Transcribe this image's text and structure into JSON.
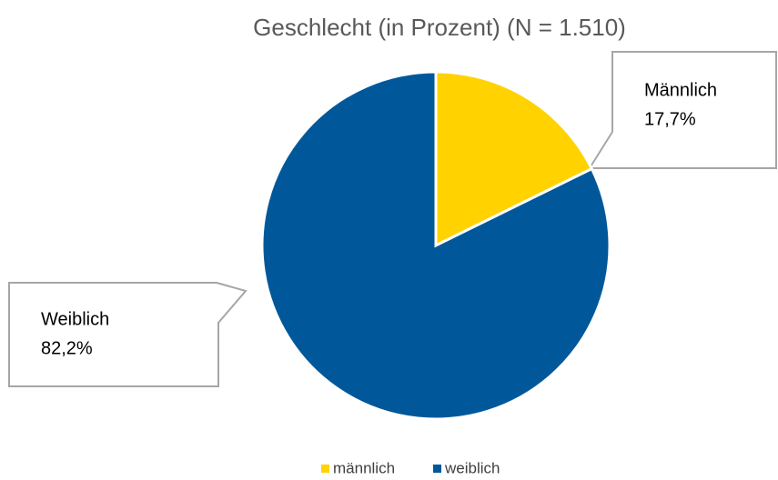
{
  "chart_data": {
    "type": "pie",
    "title": "Geschlecht (in Prozent) (N = 1.510)",
    "categories": [
      "männlich",
      "weiblich"
    ],
    "label_names": [
      "Männlich",
      "Weiblich"
    ],
    "values": [
      17.7,
      82.2
    ],
    "value_labels": [
      "17,7%",
      "82,2%"
    ],
    "colors": [
      "#FFD200",
      "#00589A"
    ],
    "legend": "bottom"
  }
}
